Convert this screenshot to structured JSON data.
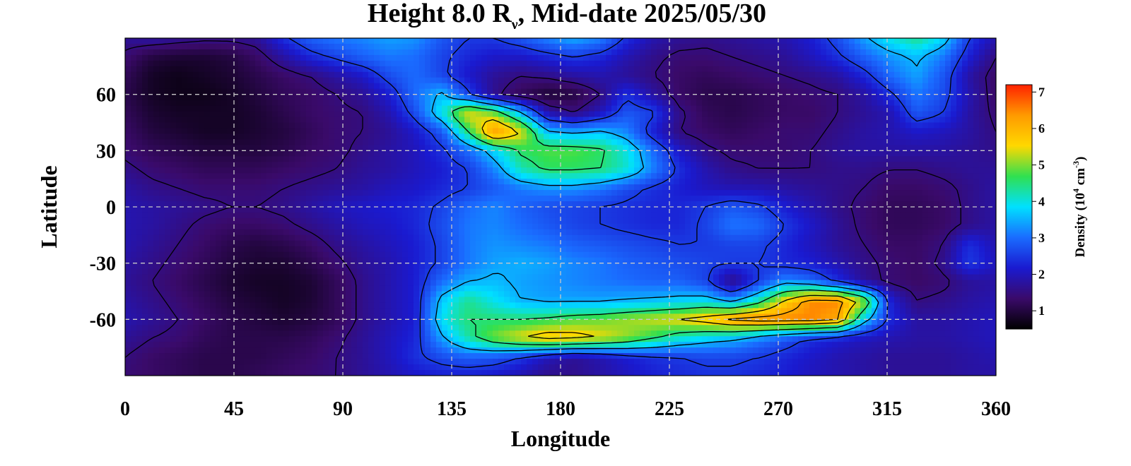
{
  "title": {
    "prefix": "Height 8.0 R",
    "subscript": "ν",
    "suffix": ", Mid-date 2025/05/30"
  },
  "colors": {
    "scale": [
      "#000000",
      "#3a0a6a",
      "#1a1ad0",
      "#1a6cff",
      "#00e0ff",
      "#30e050",
      "#ffd800",
      "#ff9a00",
      "#ff2200"
    ]
  },
  "chart_data": {
    "type": "heatmap",
    "xlabel": "Longitude",
    "ylabel": "Latitude",
    "xlim": [
      0,
      360
    ],
    "ylim": [
      -90,
      90
    ],
    "xticks": [
      0,
      45,
      90,
      135,
      180,
      225,
      270,
      315,
      360
    ],
    "yticks": [
      60,
      30,
      0,
      -30,
      -60
    ],
    "grid": true,
    "colorbar": {
      "label_prefix": "Density (10",
      "label_exp1": "4",
      "label_mid": " cm",
      "label_exp2": "-3",
      "label_suffix": ")",
      "range": [
        0.5,
        7.2
      ],
      "ticks": [
        1,
        2,
        3,
        4,
        5,
        6,
        7
      ]
    },
    "z": [
      [
        1.7,
        1.8,
        1.7,
        1.6,
        1.6,
        1.7,
        2.4,
        2.9,
        3.1,
        3.2,
        3.4,
        3.3,
        2.8,
        2.5,
        2.5,
        2.8,
        3.2,
        3.5,
        3.2,
        2.4,
        1.9,
        1.7,
        1.6,
        1.7,
        1.8,
        1.9,
        2.2,
        2.7,
        3.4,
        4.0,
        4.4,
        3.8,
        2.5,
        1.9
      ],
      [
        1.4,
        1.0,
        0.9,
        0.9,
        1.0,
        1.3,
        1.8,
        2.3,
        2.6,
        2.9,
        3.1,
        3.0,
        2.6,
        2.3,
        2.1,
        2.1,
        2.3,
        2.5,
        2.3,
        1.9,
        1.6,
        1.4,
        1.4,
        1.5,
        1.6,
        1.7,
        2.0,
        2.4,
        2.9,
        3.3,
        3.6,
        3.1,
        2.2,
        1.5
      ],
      [
        1.2,
        0.8,
        0.7,
        0.8,
        0.9,
        1.1,
        1.3,
        1.5,
        1.8,
        2.1,
        2.7,
        3.0,
        2.6,
        2.1,
        1.7,
        1.5,
        1.6,
        1.8,
        1.9,
        1.7,
        1.5,
        1.3,
        1.2,
        1.3,
        1.4,
        1.5,
        1.6,
        1.8,
        2.3,
        3.0,
        3.4,
        2.8,
        1.8,
        1.3
      ],
      [
        1.1,
        0.8,
        0.7,
        0.7,
        0.8,
        1.0,
        1.2,
        1.3,
        1.5,
        1.7,
        2.2,
        3.0,
        3.6,
        2.6,
        1.6,
        1.2,
        0.9,
        1.0,
        1.5,
        2.4,
        1.8,
        1.3,
        1.1,
        1.1,
        1.2,
        1.3,
        1.4,
        1.5,
        1.8,
        2.4,
        3.1,
        2.7,
        1.9,
        1.3
      ],
      [
        1.2,
        0.9,
        0.8,
        0.8,
        0.8,
        0.9,
        1.1,
        1.3,
        1.4,
        1.5,
        1.9,
        2.7,
        4.0,
        5.6,
        5.0,
        3.6,
        1.9,
        1.5,
        2.0,
        2.8,
        2.6,
        1.6,
        1.2,
        1.1,
        1.2,
        1.3,
        1.3,
        1.5,
        1.7,
        1.9,
        2.8,
        2.5,
        1.8,
        1.4
      ],
      [
        1.3,
        1.0,
        0.9,
        0.8,
        0.8,
        0.9,
        1.0,
        1.2,
        1.4,
        1.5,
        1.7,
        2.1,
        2.8,
        4.5,
        6.5,
        5.5,
        3.6,
        3.4,
        3.6,
        3.2,
        2.2,
        1.5,
        1.3,
        1.2,
        1.3,
        1.4,
        1.4,
        1.6,
        1.8,
        1.9,
        2.1,
        2.0,
        1.8,
        1.5
      ],
      [
        1.4,
        1.2,
        1.1,
        1.0,
        1.0,
        1.0,
        1.1,
        1.3,
        1.4,
        1.6,
        1.8,
        2.0,
        2.4,
        3.0,
        3.8,
        4.6,
        4.8,
        4.8,
        4.6,
        4.0,
        3.0,
        2.1,
        1.6,
        1.4,
        1.4,
        1.4,
        1.5,
        1.7,
        1.8,
        1.8,
        1.8,
        1.8,
        1.7,
        1.6
      ],
      [
        1.6,
        1.4,
        1.3,
        1.2,
        1.2,
        1.2,
        1.3,
        1.4,
        1.5,
        1.7,
        1.8,
        2.0,
        2.2,
        2.5,
        3.2,
        4.2,
        4.6,
        4.6,
        4.5,
        4.1,
        3.2,
        2.4,
        1.9,
        1.6,
        1.5,
        1.5,
        1.5,
        1.6,
        1.6,
        1.5,
        1.5,
        1.6,
        1.7,
        1.7
      ],
      [
        1.8,
        1.6,
        1.5,
        1.4,
        1.4,
        1.4,
        1.5,
        1.6,
        1.7,
        1.8,
        2.0,
        2.1,
        2.3,
        2.5,
        2.8,
        3.1,
        3.3,
        3.3,
        3.1,
        2.7,
        2.4,
        2.2,
        2.0,
        1.9,
        1.9,
        1.8,
        1.7,
        1.6,
        1.5,
        1.3,
        1.3,
        1.4,
        1.6,
        1.8
      ],
      [
        1.9,
        1.8,
        1.7,
        1.6,
        1.5,
        1.5,
        1.6,
        1.8,
        2.0,
        2.1,
        2.2,
        2.3,
        2.6,
        3.0,
        3.2,
        2.9,
        2.7,
        2.6,
        2.5,
        2.4,
        2.3,
        2.3,
        2.5,
        2.8,
        2.6,
        2.2,
        1.9,
        1.6,
        1.4,
        1.2,
        1.2,
        1.3,
        1.6,
        1.8
      ],
      [
        1.9,
        1.8,
        1.6,
        1.4,
        1.3,
        1.3,
        1.4,
        1.6,
        1.8,
        2.0,
        2.1,
        2.3,
        2.7,
        3.1,
        3.2,
        3.0,
        2.8,
        2.6,
        2.5,
        2.4,
        2.3,
        2.3,
        2.6,
        3.1,
        3.0,
        2.5,
        2.1,
        1.7,
        1.4,
        1.2,
        1.2,
        1.3,
        1.6,
        1.8
      ],
      [
        1.9,
        1.7,
        1.5,
        1.3,
        1.1,
        1.0,
        1.1,
        1.3,
        1.6,
        1.8,
        2.0,
        2.2,
        2.6,
        3.1,
        3.3,
        3.2,
        3.1,
        2.9,
        2.8,
        2.7,
        2.6,
        2.5,
        2.5,
        2.6,
        2.6,
        2.3,
        2.0,
        1.7,
        1.5,
        1.3,
        1.3,
        1.5,
        2.4,
        1.9
      ],
      [
        1.8,
        1.6,
        1.4,
        1.2,
        1.0,
        0.9,
        0.9,
        1.1,
        1.4,
        1.7,
        1.9,
        2.2,
        2.6,
        3.1,
        3.4,
        3.5,
        3.4,
        3.2,
        3.1,
        2.9,
        2.8,
        2.7,
        2.6,
        2.5,
        2.5,
        2.3,
        2.2,
        1.9,
        1.6,
        1.4,
        1.3,
        1.6,
        2.5,
        2.0
      ],
      [
        1.7,
        1.5,
        1.3,
        1.1,
        0.9,
        0.8,
        0.8,
        0.9,
        1.2,
        1.6,
        1.9,
        2.2,
        3.0,
        3.5,
        3.6,
        3.4,
        3.3,
        3.2,
        3.1,
        3.0,
        2.9,
        2.9,
        2.6,
        1.5,
        2.5,
        3.3,
        3.0,
        2.4,
        1.7,
        1.4,
        1.3,
        1.4,
        1.7,
        1.8
      ],
      [
        1.8,
        1.6,
        1.4,
        1.2,
        1.0,
        0.9,
        0.8,
        0.9,
        1.2,
        1.6,
        1.9,
        2.2,
        3.7,
        4.4,
        3.9,
        3.5,
        3.4,
        3.4,
        3.4,
        3.5,
        3.6,
        3.7,
        3.8,
        3.3,
        4.2,
        5.6,
        6.5,
        6.5,
        5.2,
        2.2,
        1.5,
        1.6,
        1.8,
        1.9
      ],
      [
        1.9,
        1.7,
        1.5,
        1.3,
        1.1,
        1.0,
        0.9,
        1.0,
        1.2,
        1.6,
        1.9,
        2.2,
        3.9,
        4.5,
        4.5,
        4.5,
        4.6,
        4.8,
        4.9,
        5.1,
        5.3,
        5.5,
        5.8,
        6.3,
        6.5,
        6.5,
        6.5,
        6.2,
        3.8,
        2.3,
        1.8,
        1.8,
        1.9,
        2.0
      ],
      [
        1.7,
        1.5,
        1.4,
        1.2,
        1.1,
        1.1,
        1.1,
        1.2,
        1.4,
        1.7,
        2.0,
        2.3,
        3.4,
        4.3,
        5.0,
        5.5,
        5.9,
        5.8,
        5.5,
        5.1,
        4.6,
        4.1,
        3.8,
        3.6,
        3.2,
        2.8,
        2.4,
        2.2,
        2.0,
        1.9,
        1.8,
        1.8,
        1.9,
        2.0
      ],
      [
        1.5,
        1.3,
        1.2,
        1.1,
        1.1,
        1.1,
        1.2,
        1.3,
        1.5,
        1.7,
        2.0,
        2.4,
        2.7,
        2.9,
        2.8,
        2.5,
        2.0,
        1.7,
        1.9,
        2.2,
        2.4,
        2.5,
        2.6,
        2.6,
        2.5,
        2.3,
        2.1,
        1.9,
        1.8,
        1.7,
        1.7,
        1.7,
        1.8,
        1.9
      ],
      [
        1.4,
        1.3,
        1.2,
        1.1,
        1.1,
        1.2,
        1.3,
        1.4,
        1.5,
        1.7,
        1.9,
        2.1,
        2.2,
        2.2,
        2.1,
        1.9,
        1.6,
        1.6,
        1.8,
        2.0,
        2.2,
        2.3,
        2.4,
        2.4,
        2.3,
        2.2,
        2.0,
        1.9,
        1.8,
        1.7,
        1.7,
        1.7,
        1.8,
        1.8
      ]
    ]
  }
}
